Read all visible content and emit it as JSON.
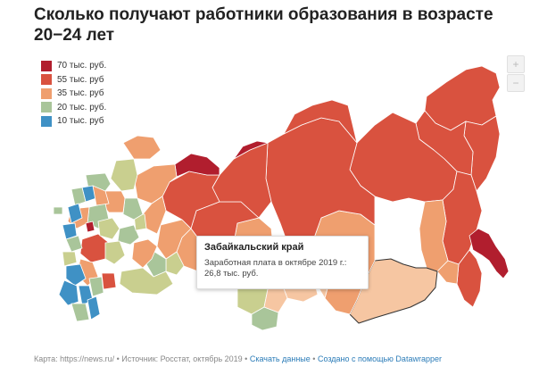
{
  "title": "Сколько получают работники образования в возрасте 20−24 лет",
  "legend": [
    {
      "label": "70 тыс. руб.",
      "color": "#b11e2e"
    },
    {
      "label": "55 тыс. руб",
      "color": "#d9523f"
    },
    {
      "label": "35 тыс. руб",
      "color": "#ef9f6f"
    },
    {
      "label": "20 тыс. руб.",
      "color": "#a9c59a"
    },
    {
      "label": "10 тыс. руб",
      "color": "#3f91c5"
    }
  ],
  "zoom": {
    "in_label": "+",
    "out_label": "−"
  },
  "tooltip": {
    "region": "Забайкальский край",
    "line1": "Заработная плата в октябре 2019 г.:",
    "line2": "26,8 тыс. руб."
  },
  "footer": {
    "source": "Карта: https://news.ru/ • Источник: Росстат, октябрь 2019 •",
    "download": "Скачать данные",
    "separator": "•",
    "credit": "Создано с помощью Datawrapper"
  }
}
